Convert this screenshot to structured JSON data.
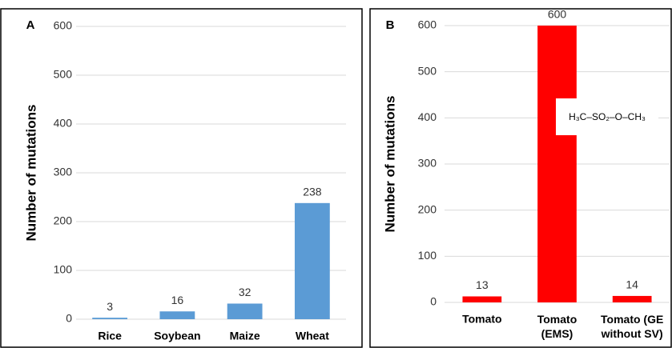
{
  "chart_data": [
    {
      "type": "bar",
      "panel_label": "A",
      "y_label": "Number of mutations",
      "categories": [
        "Rice",
        "Soybean",
        "Maize",
        "Wheat"
      ],
      "values": [
        3,
        16,
        32,
        238
      ],
      "color": "#5b9bd5",
      "ylim": [
        0,
        600
      ],
      "yticks": [
        0,
        100,
        200,
        300,
        400,
        500,
        600
      ],
      "grid": true
    },
    {
      "type": "bar",
      "panel_label": "B",
      "y_label": "Number of mutations",
      "categories": [
        "Tomato",
        "Tomato\n(EMS)",
        "Tomato (GE\nwithout SV)"
      ],
      "values": [
        13,
        600,
        14
      ],
      "color": "#ff0000",
      "ylim": [
        0,
        600
      ],
      "yticks": [
        0,
        100,
        200,
        300,
        400,
        500,
        600
      ],
      "grid": true,
      "annotation": "H₃C–SO₂–O–CH₃"
    }
  ]
}
